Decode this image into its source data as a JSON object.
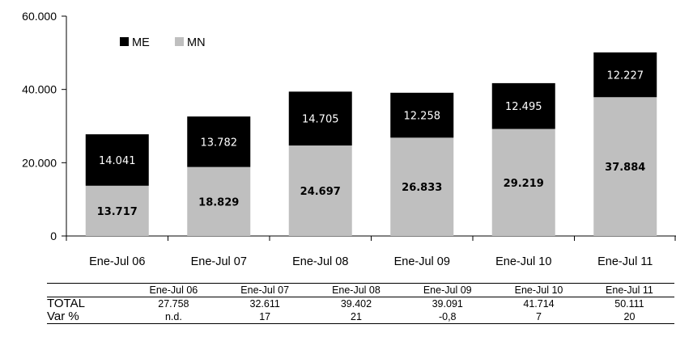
{
  "chart_data": {
    "type": "bar",
    "stacked": true,
    "categories": [
      "Ene-Jul 06",
      "Ene-Jul 07",
      "Ene-Jul 08",
      "Ene-Jul 09",
      "Ene-Jul 10",
      "Ene-Jul 11"
    ],
    "series": [
      {
        "name": "MN",
        "color": "#bfbfbf",
        "values": [
          13717,
          18829,
          24697,
          26833,
          29219,
          37884
        ],
        "labels": [
          "13.717",
          "18.829",
          "24.697",
          "26.833",
          "29.219",
          "37.884"
        ]
      },
      {
        "name": "ME",
        "color": "#000000",
        "values": [
          14041,
          13782,
          14705,
          12258,
          12495,
          12227
        ],
        "labels": [
          "14.041",
          "13.782",
          "14.705",
          "12.258",
          "12.495",
          "12.227"
        ]
      }
    ],
    "ylim": [
      0,
      60000
    ],
    "yticks": [
      0,
      20000,
      40000,
      60000
    ],
    "ytick_labels": [
      "0",
      "20.000",
      "40.000",
      "60.000"
    ],
    "legend": {
      "placement": "top-left",
      "order": [
        "ME",
        "MN"
      ]
    },
    "grid": false
  },
  "table": {
    "headers": [
      "Ene-Jul 06",
      "Ene-Jul 07",
      "Ene-Jul 08",
      "Ene-Jul 09",
      "Ene-Jul 10",
      "Ene-Jul 11"
    ],
    "rows": [
      {
        "label": "TOTAL",
        "values": [
          "27.758",
          "32.611",
          "39.402",
          "39.091",
          "41.714",
          "50.111"
        ]
      },
      {
        "label": "Var %",
        "values": [
          "n.d.",
          "17",
          "21",
          "-0,8",
          "7",
          "20"
        ]
      }
    ]
  }
}
